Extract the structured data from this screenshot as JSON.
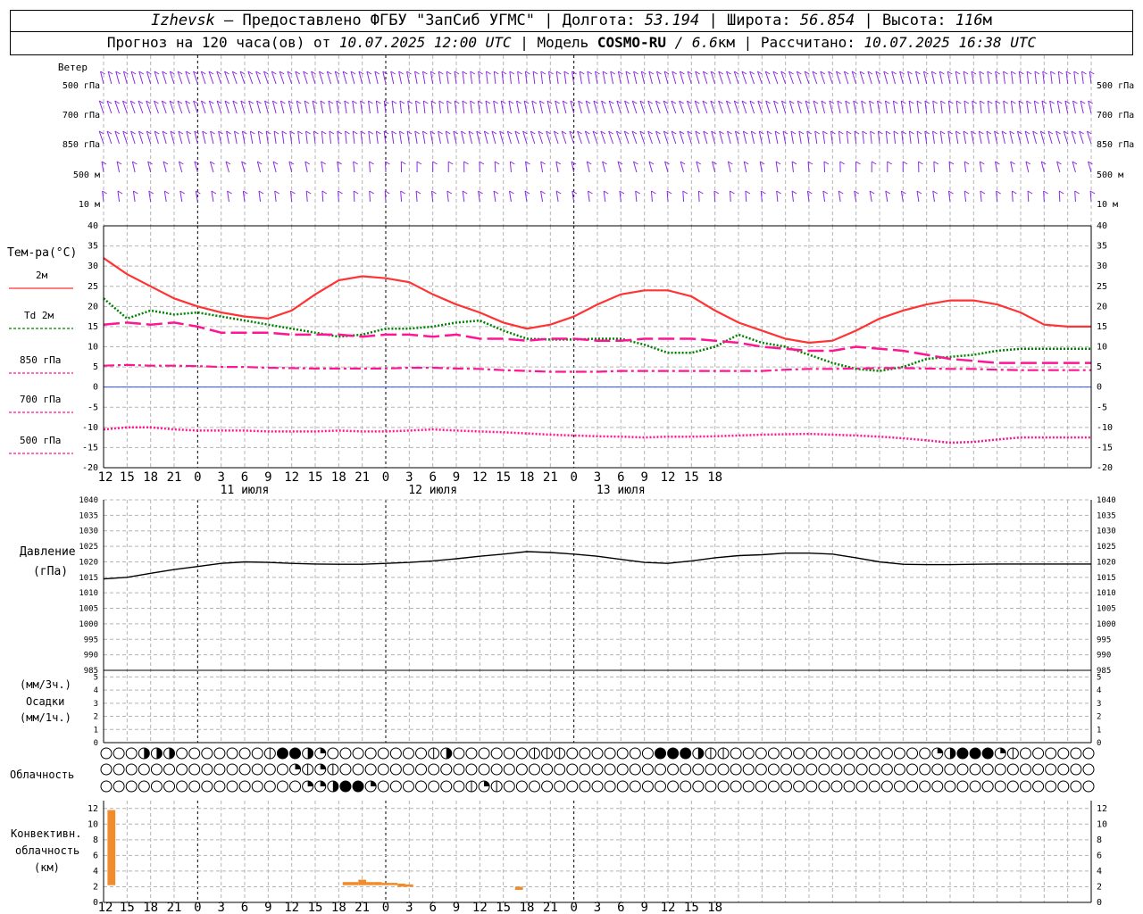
{
  "header": {
    "line1": {
      "station": "Izhevsk",
      "provider": " — Предоставлено ФГБУ \"ЗапСиб УГМС\" | Долгота: ",
      "lon": "53.194",
      "lat_label": " | Широта: ",
      "lat": "56.854",
      "alt_label": " | Высота: ",
      "alt": "116",
      "alt_unit": "м"
    },
    "line2": {
      "prefix": "Прогноз на 120 часа(ов) от ",
      "run": "10.07.2025 12:00 UTC",
      "model_label": " | Модель ",
      "model": "COSMO-RU",
      "res": " / 6.6",
      "res_unit": "км",
      "calc_label": " | Рассчитано: ",
      "calc": "10.07.2025 16:38 UTC"
    }
  },
  "x_axis": {
    "hour_labels": [
      "12",
      "15",
      "18",
      "21",
      "0",
      "3",
      "6",
      "9",
      "12",
      "15",
      "18",
      "21",
      "0",
      "3",
      "6",
      "9",
      "12",
      "15",
      "18",
      "21",
      "0",
      "3",
      "6",
      "9",
      "12",
      "15",
      "18"
    ],
    "day_labels": [
      "11 июля",
      "12 июля",
      "13 июля"
    ]
  },
  "wind_panel": {
    "title": "Ветер",
    "levels": [
      "500 гПа",
      "700 гПа",
      "850 гПа",
      "500 м",
      "10 м"
    ]
  },
  "temp_panel": {
    "title": "Тем-ра(°C)",
    "legend": [
      {
        "label": "2м",
        "color": "#ff3333",
        "dash": "solid"
      },
      {
        "label": "Td 2м",
        "color": "#008000",
        "dash": "dot"
      },
      {
        "label": "850 гПа",
        "color": "#ff1493",
        "dash": "long"
      },
      {
        "label": "700 гПа",
        "color": "#ff1493",
        "dash": "dashdot"
      },
      {
        "label": "500 гПа",
        "color": "#ff1493",
        "dash": "fine"
      }
    ],
    "yticks": [
      "40",
      "35",
      "30",
      "25",
      "20",
      "15",
      "10",
      "5",
      "0",
      "-5",
      "-10",
      "-15",
      "-20"
    ]
  },
  "pressure_panel": {
    "title": "Давление",
    "unit": "(гПа)",
    "yticks": [
      "1040",
      "1035",
      "1030",
      "1025",
      "1020",
      "1015",
      "1010",
      "1005",
      "1000",
      "995",
      "990",
      "985"
    ]
  },
  "precip_panel": {
    "unit3": "(мм/3ч.)",
    "title": "Осадки",
    "unit1": "(мм/1ч.)",
    "yticks": [
      "5",
      "4",
      "3",
      "2",
      "1",
      "0"
    ]
  },
  "cloud_panel": {
    "title": "Облачность"
  },
  "conv_panel": {
    "title1": "Конвективн.",
    "title2": "облачность",
    "unit": "(км)",
    "yticks": [
      "12",
      "10",
      "8",
      "6",
      "4",
      "2",
      "0"
    ]
  },
  "chart_data": [
    {
      "type": "line",
      "name": "temperature",
      "x_hours": [
        0,
        3,
        6,
        9,
        12,
        15,
        18,
        21,
        24,
        27,
        30,
        33,
        36,
        39,
        42,
        45,
        48,
        51,
        54,
        57,
        60,
        63,
        66,
        69,
        72,
        75,
        78,
        81,
        84,
        87,
        90,
        93,
        96,
        99,
        102,
        105,
        108,
        111,
        114,
        117,
        120,
        123,
        126
      ],
      "series": [
        {
          "name": "2м",
          "values": [
            32,
            28,
            25,
            22,
            20,
            18.5,
            17.5,
            17,
            19,
            23,
            26.5,
            27.5,
            27,
            26,
            23,
            20.5,
            18.5,
            16,
            14.5,
            15.5,
            17.5,
            20.5,
            23,
            24,
            24,
            22.5,
            19,
            16,
            14,
            12,
            11,
            11.5,
            14,
            17,
            19,
            20.5,
            21.5,
            21.5,
            20.5,
            18.5,
            15.5,
            15,
            15
          ]
        },
        {
          "name": "Td 2м",
          "values": [
            22,
            17,
            19,
            18,
            18.5,
            17.5,
            16.5,
            15.5,
            14.5,
            13.5,
            12.5,
            13,
            14.5,
            14.5,
            15,
            16,
            16.5,
            14,
            12,
            11.8,
            11.8,
            12,
            12,
            10.5,
            8.5,
            8.5,
            10,
            13,
            11,
            10,
            8,
            6,
            4.5,
            4,
            5,
            7,
            7.5,
            8,
            9,
            9.5,
            9.5,
            9.5,
            9.5
          ]
        },
        {
          "name": "850 гПа",
          "values": [
            15.5,
            16,
            15.5,
            16,
            15,
            13.5,
            13.5,
            13.5,
            13,
            13,
            13,
            12.5,
            13,
            13,
            12.5,
            13,
            12,
            12,
            11.5,
            12,
            12,
            11.5,
            11.5,
            12,
            12,
            12,
            11.5,
            11,
            10,
            9.5,
            9,
            9,
            10,
            9.5,
            9,
            8,
            7,
            6.5,
            6,
            6,
            6,
            6,
            6
          ]
        },
        {
          "name": "700 гПа",
          "values": [
            5.3,
            5.5,
            5.3,
            5.3,
            5.2,
            5,
            5,
            4.8,
            4.7,
            4.6,
            4.6,
            4.6,
            4.6,
            4.8,
            4.8,
            4.6,
            4.5,
            4.2,
            4,
            3.8,
            3.8,
            3.8,
            4,
            4,
            4,
            4,
            4,
            4,
            4,
            4.3,
            4.5,
            4.5,
            4.6,
            4.7,
            4.7,
            4.6,
            4.5,
            4.5,
            4.3,
            4.2,
            4.2,
            4.2,
            4.2
          ]
        },
        {
          "name": "500 гПа",
          "values": [
            -10.5,
            -10,
            -10,
            -10.5,
            -10.8,
            -10.8,
            -10.8,
            -11,
            -11,
            -11,
            -10.8,
            -11,
            -11,
            -10.8,
            -10.5,
            -10.8,
            -11,
            -11.2,
            -11.5,
            -11.8,
            -12,
            -12.2,
            -12.3,
            -12.5,
            -12.3,
            -12.3,
            -12.2,
            -12,
            -11.8,
            -11.7,
            -11.6,
            -11.8,
            -12,
            -12.3,
            -12.7,
            -13.2,
            -13.8,
            -13.6,
            -13,
            -12.5,
            -12.5,
            -12.5,
            -12.5
          ]
        }
      ],
      "ylim": [
        -20,
        40
      ]
    },
    {
      "type": "line",
      "name": "pressure",
      "x_hours": [
        0,
        3,
        6,
        9,
        12,
        15,
        18,
        21,
        24,
        27,
        30,
        33,
        36,
        39,
        42,
        45,
        48,
        51,
        54,
        57,
        60,
        63,
        66,
        69,
        72,
        75,
        78,
        81,
        84,
        87,
        90,
        93,
        96,
        99,
        102,
        105,
        108,
        111,
        114,
        117,
        120,
        123,
        126
      ],
      "series": [
        {
          "name": "Давление",
          "values": [
            1014.5,
            1015,
            1016.3,
            1017.5,
            1018.5,
            1019.5,
            1020,
            1019.8,
            1019.5,
            1019.3,
            1019.2,
            1019.2,
            1019.5,
            1019.8,
            1020.3,
            1021,
            1021.8,
            1022.5,
            1023.3,
            1023,
            1022.5,
            1021.8,
            1020.8,
            1019.8,
            1019.5,
            1020.3,
            1021.3,
            1022,
            1022.3,
            1022.8,
            1022.8,
            1022.5,
            1021.3,
            1020,
            1019.2,
            1019.1,
            1019.1,
            1019.2,
            1019.3,
            1019.3,
            1019.3,
            1019.3,
            1019.3
          ]
        }
      ],
      "ylim": [
        985,
        1040
      ]
    },
    {
      "type": "bar",
      "name": "convective_cloud",
      "bars": [
        {
          "x": 1,
          "bottom": 2.2,
          "top": 11.8
        },
        {
          "x": 31,
          "bottom": 2.2,
          "top": 2.6
        },
        {
          "x": 32,
          "bottom": 2.2,
          "top": 2.6
        },
        {
          "x": 33,
          "bottom": 2.2,
          "top": 2.9
        },
        {
          "x": 34,
          "bottom": 2.2,
          "top": 2.6
        },
        {
          "x": 35,
          "bottom": 2.2,
          "top": 2.6
        },
        {
          "x": 36,
          "bottom": 2.2,
          "top": 2.5
        },
        {
          "x": 37,
          "bottom": 2.2,
          "top": 2.5
        },
        {
          "x": 38,
          "bottom": 2.0,
          "top": 2.4
        },
        {
          "x": 39,
          "bottom": 2.0,
          "top": 2.3
        },
        {
          "x": 53,
          "bottom": 1.6,
          "top": 2.0
        }
      ],
      "ylim": [
        0,
        13
      ],
      "color": "#f08c2c"
    }
  ]
}
